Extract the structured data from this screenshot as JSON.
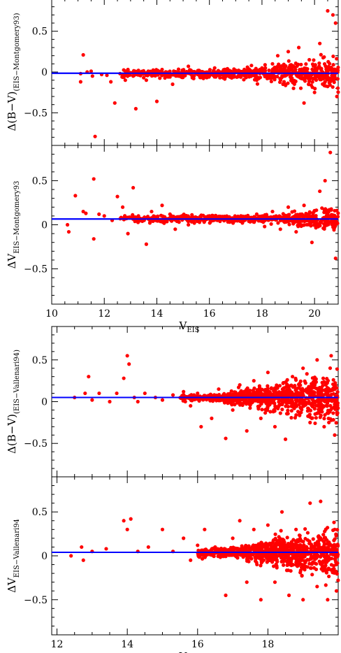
{
  "chart_data": [
    {
      "type": "scatter",
      "group": "top",
      "ylabel_main": "Δ(B−V)",
      "ylabel_sub": "(EIS−Montgomery93)",
      "xlim": [
        10,
        20.9
      ],
      "ylim": [
        -0.9,
        0.9
      ],
      "xticks": [
        10,
        12,
        14,
        16,
        18,
        20
      ],
      "yticks": [
        -0.5,
        0,
        0.5
      ],
      "fit_line": {
        "y": -0.015
      },
      "colors": {
        "points": "#ff0000",
        "line": "#0000ff"
      },
      "points": [
        [
          11.2,
          0.21
        ],
        [
          11.1,
          -0.02
        ],
        [
          11.35,
          0.0
        ],
        [
          11.5,
          0.01
        ],
        [
          11.55,
          -0.05
        ],
        [
          11.65,
          -0.79
        ],
        [
          11.1,
          -0.12
        ],
        [
          11.9,
          -0.03
        ],
        [
          12.1,
          -0.04
        ],
        [
          12.25,
          -0.12
        ],
        [
          12.4,
          -0.38
        ],
        [
          12.6,
          -0.02
        ],
        [
          12.7,
          -0.05
        ],
        [
          12.8,
          -0.1
        ],
        [
          12.9,
          0.03
        ],
        [
          13.1,
          -0.05
        ],
        [
          13.2,
          -0.45
        ],
        [
          13.3,
          0.02
        ],
        [
          13.5,
          -0.07
        ],
        [
          13.6,
          -0.1
        ],
        [
          13.8,
          -0.03
        ],
        [
          14.0,
          -0.36
        ],
        [
          14.2,
          0.03
        ],
        [
          14.5,
          -0.06
        ],
        [
          14.6,
          -0.15
        ],
        [
          14.8,
          -0.04
        ],
        [
          15.0,
          -0.02
        ],
        [
          15.2,
          0.07
        ],
        [
          15.4,
          -0.08
        ],
        [
          15.6,
          0.02
        ],
        [
          15.8,
          -0.03
        ],
        [
          16.0,
          -0.05
        ],
        [
          16.2,
          0.05
        ],
        [
          16.4,
          -0.07
        ],
        [
          16.6,
          0.02
        ],
        [
          16.8,
          -0.04
        ],
        [
          17.0,
          0.01
        ],
        [
          17.2,
          -0.06
        ],
        [
          17.4,
          -0.02
        ],
        [
          17.6,
          0.08
        ],
        [
          17.8,
          -0.1
        ],
        [
          18.0,
          0.05
        ],
        [
          18.2,
          -0.08
        ],
        [
          18.4,
          0.1
        ],
        [
          18.6,
          0.2
        ],
        [
          18.8,
          -0.15
        ],
        [
          19.0,
          0.25
        ],
        [
          19.2,
          -0.2
        ],
        [
          19.4,
          0.3
        ],
        [
          19.6,
          -0.38
        ],
        [
          19.8,
          0.15
        ],
        [
          20.0,
          -0.25
        ],
        [
          20.2,
          0.35
        ],
        [
          20.4,
          -0.12
        ],
        [
          20.5,
          0.75
        ],
        [
          20.7,
          0.7
        ],
        [
          20.8,
          0.6
        ],
        [
          20.85,
          -0.3
        ]
      ]
    },
    {
      "type": "scatter",
      "group": "top",
      "ylabel_main": "ΔV",
      "ylabel_sub": "EIS−Montgomery93",
      "xlabel_main": "V",
      "xlabel_sub": "EIS",
      "xlim": [
        10,
        20.9
      ],
      "ylim": [
        -0.9,
        0.9
      ],
      "xticks": [
        10,
        12,
        14,
        16,
        18,
        20
      ],
      "xticklabels": [
        "10",
        "12",
        "14",
        "16",
        "18",
        "20"
      ],
      "yticks": [
        -0.5,
        0,
        0.5
      ],
      "fit_line": {
        "y": 0.065
      },
      "colors": {
        "points": "#ff0000",
        "line": "#0000ff"
      },
      "points": [
        [
          10.6,
          0.0
        ],
        [
          10.65,
          -0.08
        ],
        [
          10.9,
          0.33
        ],
        [
          11.2,
          0.15
        ],
        [
          11.3,
          0.13
        ],
        [
          11.6,
          0.52
        ],
        [
          11.6,
          -0.16
        ],
        [
          11.8,
          0.12
        ],
        [
          12.0,
          0.1
        ],
        [
          12.3,
          0.05
        ],
        [
          12.5,
          0.32
        ],
        [
          12.7,
          0.2
        ],
        [
          12.9,
          -0.1
        ],
        [
          13.1,
          0.42
        ],
        [
          13.3,
          0.1
        ],
        [
          13.6,
          -0.22
        ],
        [
          13.8,
          0.15
        ],
        [
          14.0,
          0.05
        ],
        [
          14.2,
          0.22
        ],
        [
          14.5,
          0.12
        ],
        [
          14.7,
          -0.05
        ],
        [
          15.0,
          0.1
        ],
        [
          15.2,
          0.0
        ],
        [
          15.5,
          0.08
        ],
        [
          15.8,
          0.03
        ],
        [
          16.0,
          0.1
        ],
        [
          16.3,
          0.05
        ],
        [
          16.6,
          0.09
        ],
        [
          16.9,
          0.02
        ],
        [
          17.2,
          0.1
        ],
        [
          17.5,
          0.04
        ],
        [
          17.8,
          0.12
        ],
        [
          18.1,
          -0.02
        ],
        [
          18.4,
          0.15
        ],
        [
          18.7,
          -0.05
        ],
        [
          19.0,
          0.2
        ],
        [
          19.3,
          -0.08
        ],
        [
          19.6,
          0.22
        ],
        [
          19.9,
          -0.2
        ],
        [
          20.2,
          0.38
        ],
        [
          20.4,
          0.5
        ],
        [
          20.6,
          0.82
        ],
        [
          20.8,
          -0.38
        ],
        [
          20.7,
          0.1
        ]
      ]
    },
    {
      "type": "scatter",
      "group": "bottom",
      "ylabel_main": "Δ(B−V)",
      "ylabel_sub": "(EIS−Vallenari94)",
      "xlim": [
        11.85,
        20.0
      ],
      "ylim": [
        -0.9,
        0.9
      ],
      "xticks": [
        12,
        14,
        16,
        18
      ],
      "yticks": [
        -0.5,
        0,
        0.5
      ],
      "fit_line": {
        "y": 0.05
      },
      "colors": {
        "points": "#ff0000",
        "line": "#0000ff"
      },
      "points": [
        [
          12.5,
          0.05
        ],
        [
          12.8,
          0.1
        ],
        [
          12.9,
          0.3
        ],
        [
          13.0,
          0.02
        ],
        [
          13.2,
          0.1
        ],
        [
          13.5,
          0.0
        ],
        [
          13.7,
          0.1
        ],
        [
          13.9,
          0.28
        ],
        [
          14.0,
          0.55
        ],
        [
          14.05,
          0.45
        ],
        [
          14.2,
          0.05
        ],
        [
          14.3,
          0.0
        ],
        [
          14.5,
          0.1
        ],
        [
          14.8,
          0.05
        ],
        [
          15.0,
          0.02
        ],
        [
          15.3,
          0.08
        ],
        [
          15.6,
          0.12
        ],
        [
          15.8,
          -0.05
        ],
        [
          16.0,
          0.1
        ],
        [
          16.1,
          -0.3
        ],
        [
          16.4,
          -0.2
        ],
        [
          16.6,
          0.15
        ],
        [
          16.8,
          -0.44
        ],
        [
          17.0,
          -0.1
        ],
        [
          17.2,
          0.2
        ],
        [
          17.4,
          -0.35
        ],
        [
          17.6,
          0.25
        ],
        [
          17.8,
          -0.2
        ],
        [
          18.0,
          0.35
        ],
        [
          18.2,
          -0.3
        ],
        [
          18.4,
          0.1
        ],
        [
          18.5,
          -0.45
        ],
        [
          18.7,
          0.3
        ],
        [
          18.9,
          -0.15
        ],
        [
          19.0,
          0.4
        ],
        [
          19.2,
          -0.25
        ],
        [
          19.4,
          0.5
        ],
        [
          19.6,
          -0.3
        ],
        [
          19.8,
          0.55
        ],
        [
          19.9,
          -0.4
        ]
      ]
    },
    {
      "type": "scatter",
      "group": "bottom",
      "ylabel_main": "ΔV",
      "ylabel_sub": "EIS−Vallenari94",
      "xlabel_main": "V",
      "xlabel_sub": "EIS",
      "xlim": [
        11.85,
        20.0
      ],
      "ylim": [
        -0.9,
        0.9
      ],
      "xticks": [
        12,
        14,
        16,
        18
      ],
      "xticklabels": [
        "12",
        "14",
        "16",
        "18"
      ],
      "yticks": [
        -0.5,
        0,
        0.5
      ],
      "fit_line": {
        "y": 0.04
      },
      "colors": {
        "points": "#ff0000",
        "line": "#0000ff"
      },
      "points": [
        [
          12.4,
          0.0
        ],
        [
          12.7,
          0.1
        ],
        [
          12.75,
          -0.05
        ],
        [
          13.0,
          0.05
        ],
        [
          13.4,
          0.08
        ],
        [
          13.9,
          0.4
        ],
        [
          14.1,
          0.42
        ],
        [
          14.0,
          0.3
        ],
        [
          14.3,
          0.05
        ],
        [
          14.6,
          0.1
        ],
        [
          15.0,
          0.3
        ],
        [
          15.3,
          0.05
        ],
        [
          15.6,
          0.2
        ],
        [
          15.8,
          -0.05
        ],
        [
          16.0,
          0.12
        ],
        [
          16.2,
          0.3
        ],
        [
          16.5,
          0.1
        ],
        [
          16.8,
          -0.45
        ],
        [
          17.0,
          0.2
        ],
        [
          17.2,
          0.4
        ],
        [
          17.4,
          -0.3
        ],
        [
          17.6,
          0.3
        ],
        [
          17.8,
          -0.5
        ],
        [
          18.0,
          0.35
        ],
        [
          18.2,
          -0.3
        ],
        [
          18.4,
          0.5
        ],
        [
          18.6,
          -0.45
        ],
        [
          18.8,
          0.3
        ],
        [
          19.0,
          -0.5
        ],
        [
          19.2,
          0.6
        ],
        [
          19.4,
          -0.35
        ],
        [
          19.5,
          0.62
        ],
        [
          19.7,
          -0.5
        ],
        [
          19.9,
          0.3
        ],
        [
          19.95,
          -0.4
        ]
      ]
    }
  ]
}
